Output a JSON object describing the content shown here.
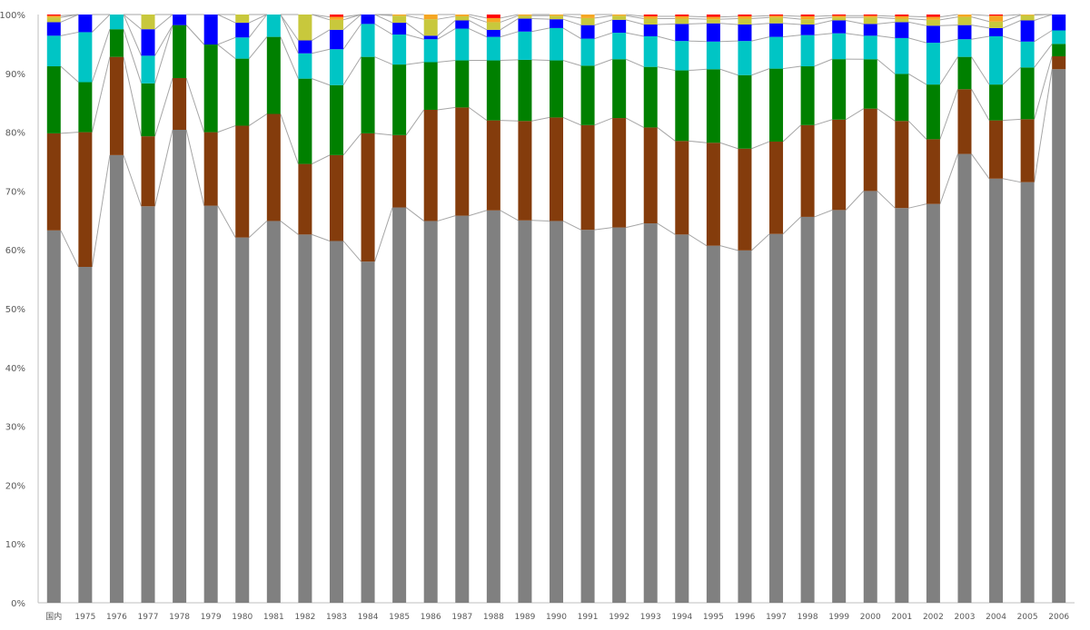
{
  "chart_data": {
    "type": "bar",
    "stacked": "percent",
    "categories": [
      "国内",
      "1975",
      "1976",
      "1977",
      "1978",
      "1979",
      "1980",
      "1981",
      "1982",
      "1983",
      "1984",
      "1985",
      "1986",
      "1987",
      "1988",
      "1989",
      "1990",
      "1991",
      "1992",
      "1993",
      "1994",
      "1995",
      "1996",
      "1997",
      "1998",
      "1999",
      "2000",
      "2001",
      "2002",
      "2003",
      "2004",
      "2005",
      "2006"
    ],
    "series": [
      {
        "color": "#808080",
        "values": [
          63.3,
          57.1,
          76.1,
          67.4,
          80.4,
          67.5,
          62.1,
          64.9,
          62.6,
          61.5,
          58.0,
          67.2,
          64.9,
          65.8,
          66.7,
          65.0,
          64.9,
          63.4,
          63.8,
          64.5,
          62.6,
          60.7,
          59.9,
          62.7,
          65.6,
          66.9,
          70.0,
          67.1,
          67.8,
          76.3,
          72.1,
          71.5,
          90.7
        ]
      },
      {
        "color": "#843C0C",
        "values": [
          16.5,
          22.9,
          16.7,
          11.9,
          8.8,
          12.5,
          19.0,
          18.2,
          12.0,
          14.6,
          21.8,
          12.3,
          18.9,
          18.4,
          15.3,
          16.9,
          17.6,
          17.8,
          18.6,
          16.3,
          15.9,
          17.5,
          17.3,
          15.7,
          15.6,
          15.4,
          14.0,
          14.8,
          11.0,
          11.0,
          9.9,
          10.7,
          2.2
        ]
      },
      {
        "color": "#008000",
        "values": [
          11.4,
          8.5,
          4.7,
          9.0,
          9.0,
          14.9,
          11.4,
          13.1,
          14.5,
          11.9,
          13.0,
          12.0,
          8.1,
          8.0,
          10.2,
          10.4,
          9.7,
          10.1,
          10.0,
          10.3,
          12.0,
          12.5,
          12.5,
          12.4,
          10.0,
          10.3,
          8.4,
          8.0,
          9.3,
          5.5,
          6.1,
          8.8,
          2.1
        ]
      },
      {
        "color": "#00C5C5",
        "values": [
          5.2,
          8.5,
          2.5,
          4.7,
          0,
          0,
          3.6,
          3.8,
          4.3,
          6.1,
          5.6,
          5.1,
          3.9,
          5.4,
          4.0,
          4.8,
          5.5,
          4.6,
          4.5,
          5.2,
          5.0,
          4.7,
          5.8,
          5.4,
          5.3,
          4.4,
          4.0,
          6.1,
          7.1,
          3.0,
          8.2,
          4.4,
          2.3
        ]
      },
      {
        "color": "#0000FF",
        "values": [
          2.3,
          3.0,
          0,
          4.5,
          1.8,
          5.1,
          2.5,
          0,
          2.2,
          3.3,
          1.6,
          2.0,
          0.6,
          1.4,
          1.2,
          2.2,
          1.5,
          2.3,
          2.2,
          2.0,
          2.9,
          3.1,
          2.8,
          2.3,
          1.8,
          2.2,
          2.0,
          2.7,
          2.9,
          2.4,
          1.4,
          3.6,
          2.7
        ]
      },
      {
        "color": "#C8C83C",
        "values": [
          0.8,
          0,
          0,
          2.5,
          0,
          0,
          1.4,
          0,
          4.4,
          1.7,
          0,
          1.2,
          2.8,
          0.7,
          1.3,
          0.5,
          0.6,
          1.2,
          0.7,
          1.0,
          0.9,
          0.7,
          1.0,
          1.0,
          0.9,
          0.5,
          1.1,
          0.6,
          1.0,
          1.4,
          1.1,
          0.9,
          0
        ]
      },
      {
        "color": "#F5A623",
        "values": [
          0.3,
          0,
          0,
          0,
          0,
          0,
          0,
          0,
          0,
          0.5,
          0,
          0.2,
          0.8,
          0.3,
          0.7,
          0.2,
          0.2,
          0.6,
          0.2,
          0.4,
          0.4,
          0.4,
          0.4,
          0.3,
          0.5,
          0.3,
          0.3,
          0.4,
          0.5,
          0.4,
          1.0,
          0.1,
          0
        ]
      },
      {
        "color": "#FF0000",
        "values": [
          0.2,
          0,
          0,
          0,
          0,
          0,
          0,
          0,
          0,
          0.4,
          0,
          0,
          0,
          0,
          0.6,
          0,
          0,
          0,
          0,
          0.3,
          0.3,
          0.4,
          0.3,
          0.2,
          0.3,
          0.2,
          0.2,
          0.3,
          0.4,
          0,
          0.2,
          0,
          0
        ]
      }
    ],
    "title": "",
    "xlabel": "",
    "ylabel": "",
    "ylim": [
      0,
      100
    ],
    "yticks": [
      "0%",
      "10%",
      "20%",
      "30%",
      "40%",
      "50%",
      "60%",
      "70%",
      "80%",
      "90%",
      "100%"
    ],
    "series_lines": true,
    "grid": false,
    "legend": "none"
  }
}
